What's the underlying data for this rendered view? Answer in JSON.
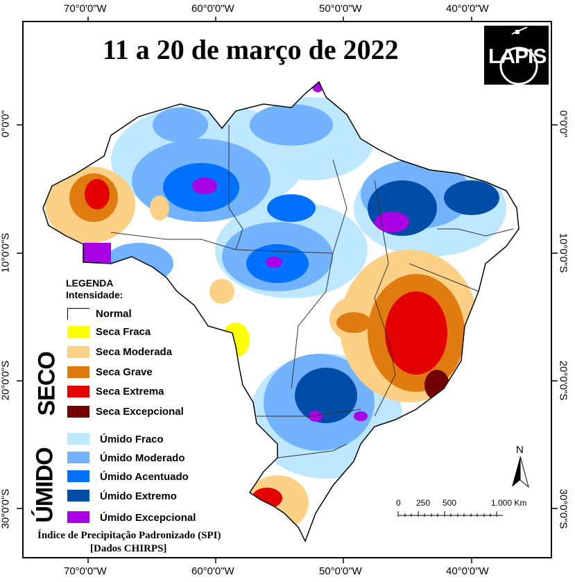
{
  "map": {
    "title": "11 a 20 de março de 2022",
    "logo_text": "LAPIS",
    "longitude_labels": [
      "70°0'0\"W",
      "60°0'0\"W",
      "50°0'0\"W",
      "40°0'0\"W"
    ],
    "latitude_labels": [
      "0°0'0\"",
      "10°0'0\"S",
      "20°0'0\"S",
      "30°0'0\"S"
    ]
  },
  "legend": {
    "heading": "LEGENDA",
    "subheading": "Intensidade:",
    "normal": {
      "label": "Normal",
      "color": "#ffffff"
    },
    "dry_group_label": "SECO",
    "dry": [
      {
        "label": "Seca Fraca",
        "color": "#ffff00"
      },
      {
        "label": "Seca Moderada",
        "color": "#fcd185"
      },
      {
        "label": "Seca Grave",
        "color": "#e07b10"
      },
      {
        "label": "Seca Extrema",
        "color": "#e50000"
      },
      {
        "label": "Seca Excepcional",
        "color": "#730000"
      }
    ],
    "wet_group_label": "ÚMIDO",
    "wet": [
      {
        "label": "Úmido Fraco",
        "color": "#bee8ff"
      },
      {
        "label": "Úmido Moderado",
        "color": "#73b2ff"
      },
      {
        "label": "Úmido Acentuado",
        "color": "#0070ff"
      },
      {
        "label": "Úmido Extremo",
        "color": "#004da8"
      },
      {
        "label": "Úmido Excepcional",
        "color": "#a900e6"
      }
    ]
  },
  "footer": {
    "line1": "Índice de Precipitação Padronizado (SPI)",
    "line2": "[Dados CHIRPS]"
  },
  "scale_bar": {
    "labels": [
      "0",
      "250",
      "500",
      "1.000 Km"
    ]
  },
  "north_arrow": {
    "label": "N"
  }
}
